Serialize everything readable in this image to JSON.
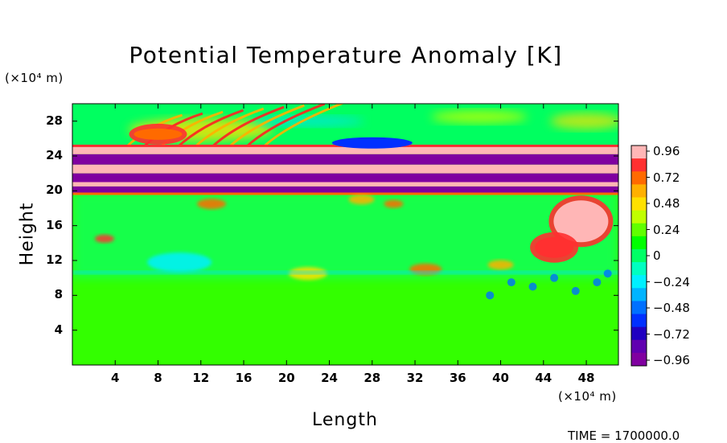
{
  "chart_data": {
    "type": "heatmap",
    "title": "Potential Temperature Anomaly [K]",
    "xlabel": "Length",
    "ylabel": "Height",
    "x_unit": "(×10⁴ m)",
    "y_unit": "(×10⁴ m)",
    "xlim": [
      0,
      51
    ],
    "ylim": [
      0,
      30
    ],
    "x_ticks": [
      4,
      8,
      12,
      16,
      20,
      24,
      28,
      32,
      36,
      40,
      44,
      48
    ],
    "y_ticks": [
      4,
      8,
      12,
      16,
      20,
      24,
      28
    ],
    "value_range": [
      -1.08,
      1.08
    ],
    "colorbar_ticks": [
      "0.96",
      "0.72",
      "0.48",
      "0.24",
      "0",
      "−0.24",
      "−0.48",
      "−0.72",
      "−0.96"
    ],
    "colorbar_colors": [
      "#ffb6b6",
      "#ff3030",
      "#ff6a00",
      "#ffb000",
      "#ffe000",
      "#c0ff00",
      "#60ff00",
      "#00ff00",
      "#00ff66",
      "#00ffc0",
      "#00f0ff",
      "#00b4ff",
      "#0070ff",
      "#0030ff",
      "#2000c0",
      "#6000b0",
      "#8000a0"
    ],
    "layers": [
      {
        "name": "pink band",
        "y_from": 24.2,
        "y_to": 25.2,
        "value": 1.0
      },
      {
        "name": "purple band",
        "y_from": 23.0,
        "y_to": 24.2,
        "value": -1.0
      },
      {
        "name": "pink band",
        "y_from": 22.0,
        "y_to": 23.0,
        "value": 1.0
      },
      {
        "name": "purple band",
        "y_from": 21.0,
        "y_to": 22.0,
        "value": -1.0
      },
      {
        "name": "pink band",
        "y_from": 20.5,
        "y_to": 21.0,
        "value": 1.0
      },
      {
        "name": "purple band",
        "y_from": 19.8,
        "y_to": 20.5,
        "value": -1.0
      }
    ],
    "features": [
      {
        "name": "warm anomaly",
        "x": 47.5,
        "y": 16.5,
        "value": 1.0
      },
      {
        "name": "warm anomaly",
        "x": 45.0,
        "y": 13.5,
        "value": 0.9
      },
      {
        "name": "cold anomaly",
        "x": 28.0,
        "y": 25.5,
        "value": -0.6
      },
      {
        "name": "warm streaks",
        "x": 8.0,
        "y": 26.5,
        "value": 0.7
      }
    ],
    "grid": false
  },
  "footer": {
    "time_label": "TIME = 1700000.0"
  }
}
